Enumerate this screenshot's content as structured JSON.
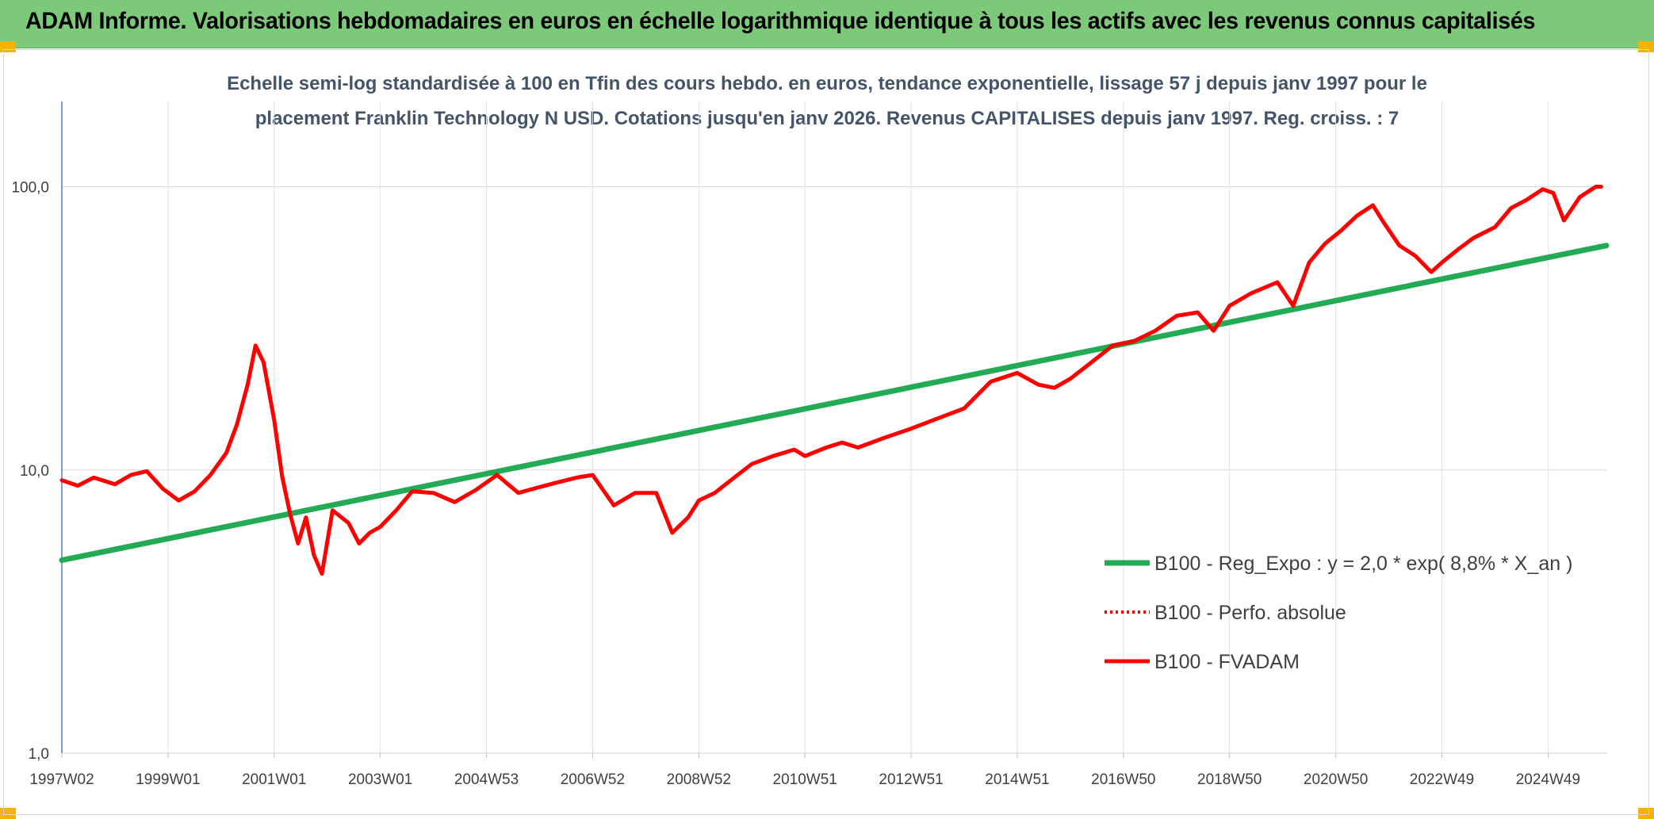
{
  "header": {
    "title": "ADAM Informe. Valorisations hebdomadaires en euros en échelle logarithmique identique à tous les actifs avec les revenus connus capitalisés"
  },
  "colors": {
    "header_bg": "#7dc97a",
    "corner_accent": "#f2b400",
    "trend": "#22aa55",
    "fvadam": "#ff0000",
    "perf_absolue": "#ff0000"
  },
  "chart_data": {
    "type": "line",
    "title_lines": [
      "Echelle semi-log standardisée à 100 en Tfin des cours hebdo. en euros, tendance exponentielle, lissage 57 j depuis janv 1997 pour le",
      "placement Franklin Technology N USD. Cotations jusqu'en janv 2026. Revenus CAPITALISES depuis janv 1997. Reg. croiss. : 7"
    ],
    "y_scale": "log",
    "ylim": [
      1,
      200
    ],
    "y_ticks": [
      {
        "value": 100,
        "label": "100,0"
      },
      {
        "value": 10,
        "label": "10,0"
      },
      {
        "value": 1,
        "label": "1,0"
      }
    ],
    "xlim": [
      1997.0,
      2026.1
    ],
    "x_ticks": [
      {
        "value": 1997.0,
        "label": "1997W02"
      },
      {
        "value": 1999.0,
        "label": "1999W01"
      },
      {
        "value": 2001.0,
        "label": "2001W01"
      },
      {
        "value": 2003.0,
        "label": "2003W01"
      },
      {
        "value": 2005.0,
        "label": "2004W53"
      },
      {
        "value": 2007.0,
        "label": "2006W52"
      },
      {
        "value": 2009.0,
        "label": "2008W52"
      },
      {
        "value": 2011.0,
        "label": "2010W51"
      },
      {
        "value": 2013.0,
        "label": "2012W51"
      },
      {
        "value": 2015.0,
        "label": "2014W51"
      },
      {
        "value": 2017.0,
        "label": "2016W50"
      },
      {
        "value": 2019.0,
        "label": "2018W50"
      },
      {
        "value": 2021.0,
        "label": "2020W50"
      },
      {
        "value": 2023.0,
        "label": "2022W49"
      },
      {
        "value": 2025.0,
        "label": "2024W49"
      }
    ],
    "grid": "vertical and horizontal",
    "legend_position": "bottom-right inside plot",
    "series": [
      {
        "name": "B100 - Reg_Expo : y = 2,0 * exp( 8,8% *  X_an )",
        "style": "solid-thick",
        "color": "#22aa55",
        "x": [
          1997.0,
          2026.1
        ],
        "values": [
          4.8,
          62.0
        ]
      },
      {
        "name": "B100 - Perfo. absolue",
        "style": "dotted",
        "color": "#ff0000",
        "x": [],
        "values": []
      },
      {
        "name": "B100 - FVADAM",
        "style": "solid",
        "color": "#ff0000",
        "x": [
          1997.0,
          1997.3,
          1997.6,
          1998.0,
          1998.3,
          1998.6,
          1998.9,
          1999.2,
          1999.5,
          1999.8,
          2000.1,
          2000.3,
          2000.5,
          2000.65,
          2000.8,
          2000.9,
          2001.0,
          2001.15,
          2001.3,
          2001.45,
          2001.6,
          2001.75,
          2001.9,
          2002.1,
          2002.4,
          2002.6,
          2002.8,
          2003.0,
          2003.3,
          2003.6,
          2004.0,
          2004.4,
          2004.8,
          2005.2,
          2005.6,
          2006.0,
          2006.3,
          2006.7,
          2007.0,
          2007.4,
          2007.8,
          2008.2,
          2008.5,
          2008.8,
          2009.0,
          2009.3,
          2009.7,
          2010.0,
          2010.4,
          2010.8,
          2011.0,
          2011.4,
          2011.7,
          2012.0,
          2012.5,
          2013.0,
          2013.5,
          2014.0,
          2014.5,
          2015.0,
          2015.4,
          2015.7,
          2016.0,
          2016.4,
          2016.8,
          2017.2,
          2017.6,
          2018.0,
          2018.4,
          2018.7,
          2019.0,
          2019.4,
          2019.9,
          2020.2,
          2020.5,
          2020.8,
          2021.1,
          2021.4,
          2021.7,
          2021.9,
          2022.2,
          2022.5,
          2022.8,
          2023.0,
          2023.3,
          2023.6,
          2024.0,
          2024.3,
          2024.6,
          2024.9,
          2025.1,
          2025.3,
          2025.6,
          2025.9,
          2026.0
        ],
        "values": [
          9.2,
          8.8,
          9.4,
          8.9,
          9.6,
          9.9,
          8.6,
          7.8,
          8.4,
          9.6,
          11.5,
          14.5,
          20.0,
          27.5,
          24.0,
          19.0,
          15.0,
          9.5,
          7.0,
          5.5,
          6.8,
          5.0,
          4.3,
          7.2,
          6.5,
          5.5,
          6.0,
          6.3,
          7.2,
          8.4,
          8.3,
          7.7,
          8.5,
          9.6,
          8.3,
          8.7,
          9.0,
          9.4,
          9.6,
          7.5,
          8.3,
          8.3,
          6.0,
          6.8,
          7.8,
          8.3,
          9.5,
          10.5,
          11.2,
          11.8,
          11.2,
          12.0,
          12.5,
          12.0,
          13.0,
          14.0,
          15.2,
          16.5,
          20.5,
          22.0,
          20.0,
          19.5,
          21.0,
          24.0,
          27.5,
          28.5,
          31.0,
          35.0,
          36.0,
          31.0,
          38.0,
          42.0,
          46.0,
          38.0,
          54.0,
          63.0,
          70.0,
          79.0,
          86.0,
          75.0,
          62.0,
          57.0,
          50.0,
          54.0,
          60.0,
          66.0,
          72.0,
          84.0,
          90.0,
          98.0,
          95.0,
          76.0,
          92.0,
          100.0,
          100.0
        ]
      }
    ]
  }
}
